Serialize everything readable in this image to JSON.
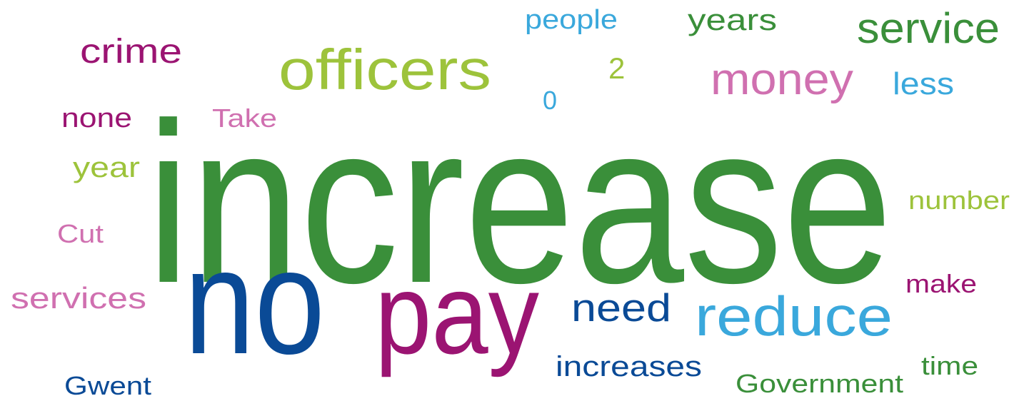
{
  "words": [
    "increase",
    "no",
    "pay",
    "officers",
    "service",
    "money",
    "reduce",
    "need",
    "crime",
    "people",
    "years",
    "2",
    "0",
    "less",
    "none",
    "Take",
    "year",
    "number",
    "Cut",
    "services",
    "make",
    "increases",
    "time",
    "Government",
    "Gwent"
  ]
}
